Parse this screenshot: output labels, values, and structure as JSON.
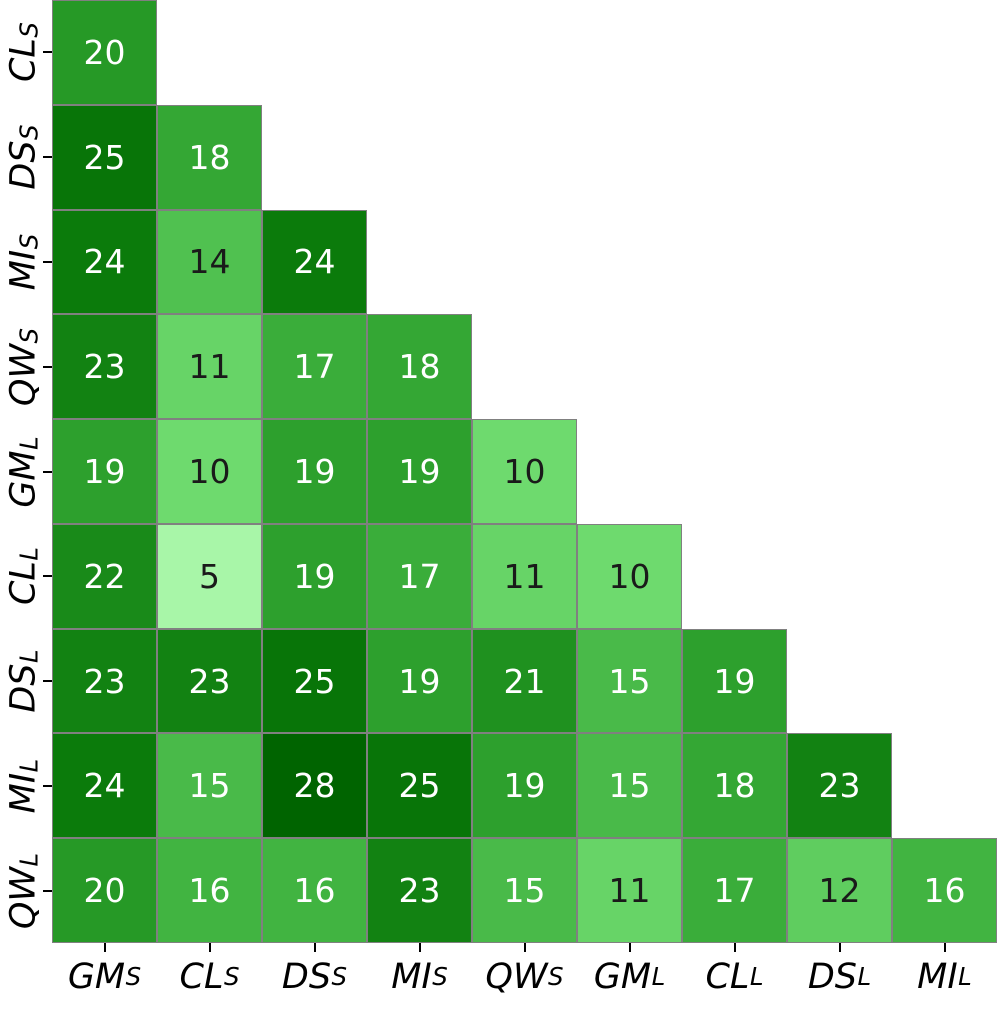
{
  "chart_data": {
    "type": "heatmap",
    "title": "",
    "shape": "lower-triangle",
    "row_labels": [
      {
        "base": "CL",
        "sub": "S"
      },
      {
        "base": "DS",
        "sub": "S"
      },
      {
        "base": "MI",
        "sub": "S"
      },
      {
        "base": "QW",
        "sub": "S"
      },
      {
        "base": "GM",
        "sub": "L"
      },
      {
        "base": "CL",
        "sub": "L"
      },
      {
        "base": "DS",
        "sub": "L"
      },
      {
        "base": "MI",
        "sub": "L"
      },
      {
        "base": "QW",
        "sub": "L"
      }
    ],
    "col_labels": [
      {
        "base": "GM",
        "sub": "S"
      },
      {
        "base": "CL",
        "sub": "S"
      },
      {
        "base": "DS",
        "sub": "S"
      },
      {
        "base": "MI",
        "sub": "S"
      },
      {
        "base": "QW",
        "sub": "S"
      },
      {
        "base": "GM",
        "sub": "L"
      },
      {
        "base": "CL",
        "sub": "L"
      },
      {
        "base": "DS",
        "sub": "L"
      },
      {
        "base": "MI",
        "sub": "L"
      }
    ],
    "values": [
      [
        20
      ],
      [
        25,
        18
      ],
      [
        24,
        14,
        24
      ],
      [
        23,
        11,
        17,
        18
      ],
      [
        19,
        10,
        19,
        19,
        10
      ],
      [
        22,
        5,
        19,
        17,
        11,
        10
      ],
      [
        23,
        23,
        25,
        19,
        21,
        15,
        19
      ],
      [
        24,
        15,
        28,
        25,
        19,
        15,
        18,
        23
      ],
      [
        20,
        16,
        16,
        23,
        15,
        11,
        17,
        12,
        16
      ]
    ],
    "vmin": 5,
    "vmax": 28,
    "colormap_stops": [
      {
        "value": 5,
        "color": "#a8f6a8"
      },
      {
        "value": 10,
        "color": "#6eda6e"
      },
      {
        "value": 16,
        "color": "#41b441"
      },
      {
        "value": 19,
        "color": "#2da02d"
      },
      {
        "value": 24,
        "color": "#0b7b0b"
      },
      {
        "value": 28,
        "color": "#006400"
      }
    ],
    "annotation_colors": {
      "light": "#ffffff",
      "dark": "#1a1a1a",
      "light_threshold": 15
    },
    "grid_color": "#808080",
    "tick_color": "#000000",
    "background": "#ffffff",
    "legend": "none",
    "grid": "cell-borders"
  }
}
